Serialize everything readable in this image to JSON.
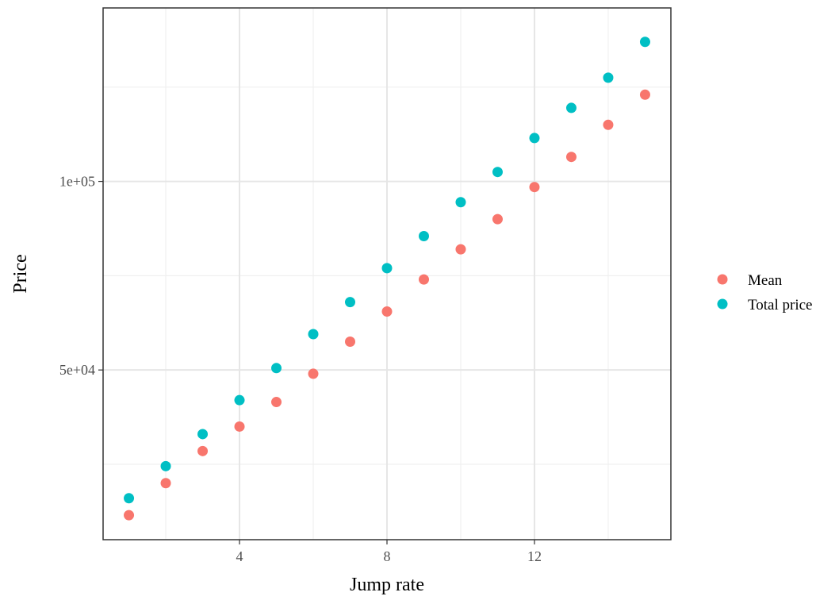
{
  "chart_data": {
    "type": "scatter",
    "xlabel": "Jump rate",
    "ylabel": "Price",
    "x_ticks": [
      4,
      8,
      12
    ],
    "x_tick_labels": [
      "4",
      "8",
      "12"
    ],
    "y_ticks": [
      50000,
      100000
    ],
    "y_tick_labels": [
      "5e+04",
      "1e+05"
    ],
    "xlim": [
      0.3,
      15.7
    ],
    "ylim": [
      5000,
      146000
    ],
    "grid": true,
    "legend_position": "right",
    "series": [
      {
        "name": "Mean",
        "color": "#F8766D",
        "x": [
          1,
          2,
          3,
          4,
          5,
          6,
          7,
          8,
          9,
          10,
          11,
          12,
          13,
          14,
          15
        ],
        "y": [
          11500,
          20000,
          28500,
          35000,
          41500,
          49000,
          57500,
          65500,
          74000,
          82000,
          90000,
          98500,
          106500,
          115000,
          123000
        ]
      },
      {
        "name": "Total price",
        "color": "#00BFC4",
        "x": [
          1,
          2,
          3,
          4,
          5,
          6,
          7,
          8,
          9,
          10,
          11,
          12,
          13,
          14,
          15
        ],
        "y": [
          16000,
          24500,
          33000,
          42000,
          50500,
          59500,
          68000,
          77000,
          85500,
          94500,
          102500,
          111500,
          119500,
          127500,
          137000
        ]
      }
    ]
  }
}
